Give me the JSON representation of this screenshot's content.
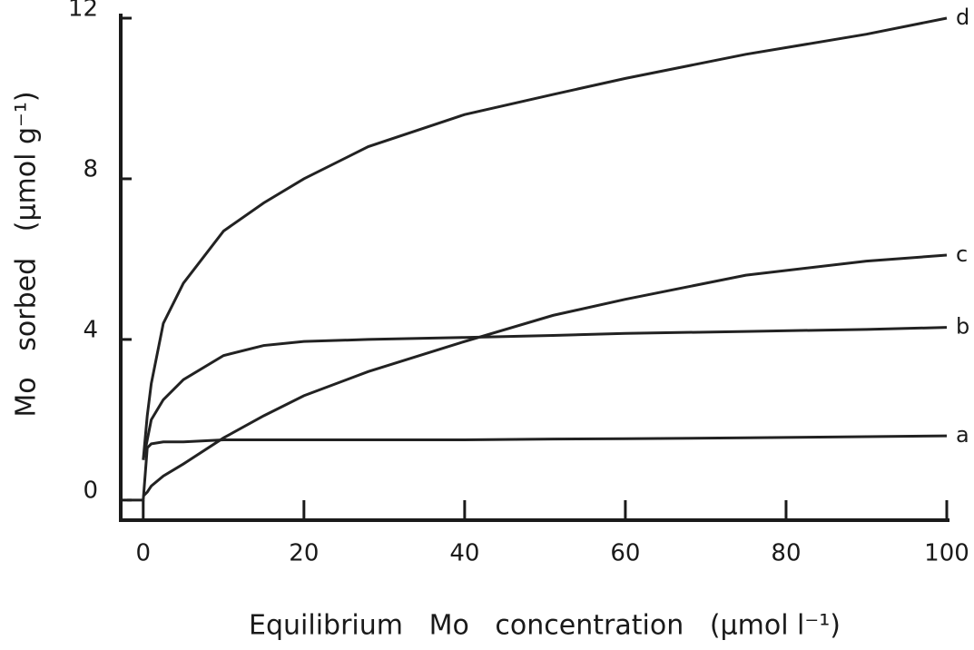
{
  "chart_data": {
    "type": "line",
    "xlabel": "Equilibrium   Mo   concentration   (µmol l⁻¹)",
    "ylabel": "Mo   sorbed   (µmol g⁻¹)",
    "x": [
      -2,
      0,
      0.5,
      1,
      2.5,
      5,
      10,
      15,
      20,
      28,
      40,
      51,
      60,
      75,
      90,
      100
    ],
    "series": [
      {
        "name": "a",
        "color": "#222222",
        "values": [
          0,
          0,
          1.3,
          1.4,
          1.45,
          1.45,
          1.5,
          1.5,
          1.5,
          1.5,
          1.5,
          1.52,
          1.53,
          1.55,
          1.58,
          1.6
        ]
      },
      {
        "name": "b",
        "color": "#222222",
        "values": [
          null,
          1.0,
          1.5,
          2.0,
          2.5,
          3.0,
          3.6,
          3.85,
          3.95,
          4.0,
          4.05,
          4.1,
          4.15,
          4.2,
          4.25,
          4.3
        ]
      },
      {
        "name": "c",
        "color": "#222222",
        "values": [
          null,
          0.1,
          0.2,
          0.35,
          0.6,
          0.9,
          1.55,
          2.1,
          2.6,
          3.2,
          3.95,
          4.6,
          5.0,
          5.6,
          5.95,
          6.1
        ]
      },
      {
        "name": "d",
        "color": "#222222",
        "values": [
          null,
          1.0,
          2.1,
          2.9,
          4.4,
          5.4,
          6.7,
          7.4,
          8.0,
          8.8,
          9.6,
          10.1,
          10.5,
          11.1,
          11.6,
          12.0
        ]
      }
    ],
    "xlim": [
      -2.8,
      100
    ],
    "ylim": [
      -0.5,
      12
    ],
    "xticks": [
      0,
      20,
      40,
      60,
      80,
      100
    ],
    "yticks": [
      0,
      4,
      8,
      12
    ]
  }
}
